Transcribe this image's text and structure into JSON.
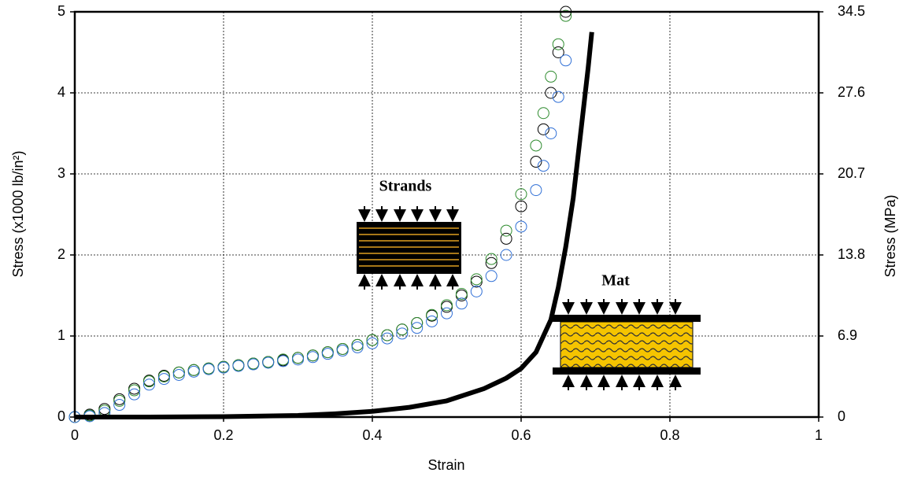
{
  "chart_data": {
    "type": "scatter",
    "x_label": "Strain",
    "y_label": "Stress (x1000 lb/in²)",
    "y2_label": "Stress (MPa)",
    "annotations": [
      "Strands",
      "Mat"
    ],
    "xlim": [
      0,
      1
    ],
    "xticks": [
      0,
      0.2,
      0.4,
      0.6,
      0.8,
      1
    ],
    "ylim": [
      0,
      5
    ],
    "yticks": [
      0,
      1,
      2,
      3,
      4,
      5
    ],
    "y2lim": [
      0,
      34.5
    ],
    "y2ticks": [
      0,
      6.9,
      13.8,
      20.7,
      27.6,
      34.5
    ],
    "grid": true,
    "series": [
      {
        "color": "#000000",
        "marker": "circle",
        "x": [
          0,
          0.02,
          0.04,
          0.06,
          0.08,
          0.1,
          0.12,
          0.14,
          0.16,
          0.18,
          0.2,
          0.22,
          0.24,
          0.26,
          0.28,
          0.3,
          0.32,
          0.34,
          0.36,
          0.38,
          0.4,
          0.42,
          0.44,
          0.46,
          0.48,
          0.5,
          0.52,
          0.54,
          0.56,
          0.58,
          0.6,
          0.62,
          0.63,
          0.64,
          0.65,
          0.66
        ],
        "values": [
          0,
          0.03,
          0.1,
          0.22,
          0.35,
          0.45,
          0.51,
          0.55,
          0.58,
          0.6,
          0.62,
          0.64,
          0.66,
          0.68,
          0.7,
          0.73,
          0.76,
          0.8,
          0.84,
          0.89,
          0.95,
          1.01,
          1.08,
          1.16,
          1.25,
          1.36,
          1.5,
          1.67,
          1.9,
          2.2,
          2.6,
          3.15,
          3.55,
          4.0,
          4.5,
          5.0
        ]
      },
      {
        "color": "#2e8b2e",
        "marker": "circle",
        "x": [
          0,
          0.02,
          0.04,
          0.06,
          0.08,
          0.1,
          0.12,
          0.14,
          0.16,
          0.18,
          0.2,
          0.22,
          0.24,
          0.26,
          0.28,
          0.3,
          0.32,
          0.34,
          0.36,
          0.38,
          0.4,
          0.42,
          0.44,
          0.46,
          0.48,
          0.5,
          0.52,
          0.54,
          0.56,
          0.58,
          0.6,
          0.62,
          0.63,
          0.64,
          0.65,
          0.66
        ],
        "values": [
          0,
          0.02,
          0.08,
          0.2,
          0.33,
          0.44,
          0.5,
          0.55,
          0.58,
          0.6,
          0.62,
          0.64,
          0.66,
          0.68,
          0.71,
          0.73,
          0.76,
          0.8,
          0.84,
          0.89,
          0.95,
          1.01,
          1.08,
          1.16,
          1.26,
          1.38,
          1.52,
          1.7,
          1.95,
          2.3,
          2.75,
          3.35,
          3.75,
          4.2,
          4.6,
          4.95
        ]
      },
      {
        "color": "#2f6fd6",
        "marker": "circle",
        "x": [
          0,
          0.02,
          0.04,
          0.06,
          0.08,
          0.1,
          0.12,
          0.14,
          0.16,
          0.18,
          0.2,
          0.22,
          0.24,
          0.26,
          0.28,
          0.3,
          0.32,
          0.34,
          0.36,
          0.38,
          0.4,
          0.42,
          0.44,
          0.46,
          0.48,
          0.5,
          0.52,
          0.54,
          0.56,
          0.58,
          0.6,
          0.62,
          0.63,
          0.64,
          0.65,
          0.66
        ],
        "values": [
          0,
          0.01,
          0.05,
          0.15,
          0.28,
          0.4,
          0.47,
          0.52,
          0.56,
          0.59,
          0.61,
          0.63,
          0.65,
          0.67,
          0.69,
          0.71,
          0.74,
          0.78,
          0.82,
          0.86,
          0.91,
          0.97,
          1.03,
          1.1,
          1.18,
          1.28,
          1.4,
          1.55,
          1.74,
          2.0,
          2.35,
          2.8,
          3.1,
          3.5,
          3.95,
          4.4
        ]
      },
      {
        "color": "#000000",
        "marker": "line",
        "x": [
          0,
          0.1,
          0.2,
          0.3,
          0.35,
          0.4,
          0.45,
          0.5,
          0.55,
          0.58,
          0.6,
          0.62,
          0.64,
          0.65,
          0.66,
          0.67,
          0.68,
          0.69,
          0.695
        ],
        "values": [
          0,
          0,
          0.005,
          0.02,
          0.04,
          0.07,
          0.12,
          0.2,
          0.35,
          0.48,
          0.6,
          0.8,
          1.2,
          1.6,
          2.1,
          2.7,
          3.5,
          4.3,
          4.75
        ]
      }
    ]
  }
}
